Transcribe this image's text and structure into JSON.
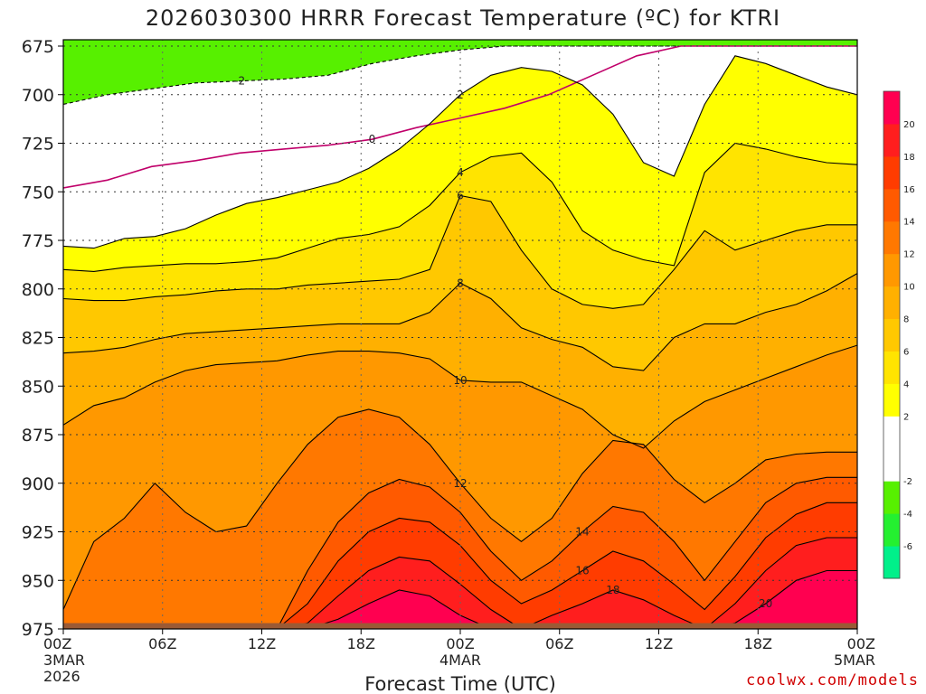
{
  "chart_data": {
    "type": "heatmap",
    "title": "2026030300 HRRR Forecast Temperature (ºC) for KTRI",
    "xlabel": "Forecast Time (UTC)",
    "ylabel": "",
    "x_range_hours": [
      0,
      48
    ],
    "ylim": [
      675,
      975
    ],
    "y_ticks": [
      "675",
      "700",
      "725",
      "750",
      "775",
      "800",
      "825",
      "850",
      "875",
      "900",
      "925",
      "950",
      "975"
    ],
    "x_ticks": [
      {
        "hour": 0,
        "lines": [
          "00Z",
          "3MAR",
          "2026"
        ]
      },
      {
        "hour": 6,
        "lines": [
          "06Z"
        ]
      },
      {
        "hour": 12,
        "lines": [
          "12Z"
        ]
      },
      {
        "hour": 18,
        "lines": [
          "18Z"
        ]
      },
      {
        "hour": 24,
        "lines": [
          "00Z",
          "4MAR"
        ]
      },
      {
        "hour": 30,
        "lines": [
          "06Z"
        ]
      },
      {
        "hour": 36,
        "lines": [
          "12Z"
        ]
      },
      {
        "hour": 42,
        "lines": [
          "18Z"
        ]
      },
      {
        "hour": 48,
        "lines": [
          "00Z",
          "5MAR"
        ]
      }
    ],
    "grid": true,
    "colorbar": {
      "levels": [
        -8,
        -6,
        -4,
        -2,
        0,
        2,
        4,
        6,
        8,
        10,
        12,
        14,
        16,
        18,
        20,
        22
      ],
      "tick_labels": [
        "-6",
        "-4",
        "-2",
        "2",
        "4",
        "6",
        "8",
        "10",
        "12",
        "14",
        "16",
        "18",
        "20"
      ],
      "colors": [
        "#00f08a",
        "#24f030",
        "#57f000",
        "#ffffff",
        "#ffffff",
        "#ffff00",
        "#ffe400",
        "#ffc800",
        "#ffb000",
        "#ff9800",
        "#ff7800",
        "#ff5a00",
        "#ff3c00",
        "#ff1e1e",
        "#ff0050"
      ]
    },
    "contours": [
      {
        "label": "-2",
        "dashed": true,
        "y": [
          705,
          700,
          697,
          694,
          693,
          692,
          690,
          684,
          680,
          677,
          675,
          675,
          675,
          675,
          675,
          675,
          675,
          675,
          675
        ]
      },
      {
        "label": "0",
        "dashed": false,
        "y": [
          748,
          744,
          737,
          734,
          730,
          728,
          726,
          723,
          717,
          712,
          707,
          700,
          690,
          680,
          675,
          675,
          675,
          675,
          675
        ]
      },
      {
        "label": "2",
        "dashed": false,
        "y": [
          778,
          779,
          774,
          773,
          769,
          762,
          756,
          753,
          749,
          745,
          738,
          728,
          715,
          700,
          690,
          686,
          688,
          695,
          710,
          735,
          742,
          705,
          680,
          684,
          690,
          696,
          700
        ]
      },
      {
        "label": "4",
        "dashed": false,
        "y": [
          790,
          791,
          789,
          788,
          787,
          787,
          786,
          784,
          779,
          774,
          772,
          768,
          757,
          740,
          732,
          730,
          745,
          770,
          780,
          785,
          788,
          740,
          725,
          728,
          732,
          735,
          736
        ]
      },
      {
        "label": "6",
        "dashed": false,
        "y": [
          805,
          806,
          806,
          804,
          803,
          801,
          800,
          800,
          798,
          797,
          796,
          795,
          790,
          752,
          755,
          780,
          800,
          808,
          810,
          808,
          790,
          770,
          780,
          775,
          770,
          767,
          767
        ]
      },
      {
        "label": "8",
        "dashed": false,
        "y": [
          833,
          832,
          830,
          826,
          823,
          822,
          821,
          820,
          819,
          818,
          818,
          818,
          812,
          797,
          805,
          820,
          826,
          830,
          840,
          842,
          825,
          818,
          818,
          812,
          808,
          801,
          792
        ]
      },
      {
        "label": "10",
        "dashed": false,
        "y": [
          870,
          860,
          856,
          848,
          842,
          839,
          838,
          837,
          834,
          832,
          832,
          833,
          836,
          847,
          848,
          848,
          855,
          862,
          875,
          882,
          868,
          858,
          852,
          846,
          840,
          834,
          829
        ]
      },
      {
        "label": "12",
        "dashed": false,
        "y": [
          965,
          930,
          918,
          900,
          915,
          925,
          922,
          900,
          880,
          866,
          862,
          866,
          880,
          900,
          918,
          930,
          918,
          895,
          878,
          880,
          898,
          910,
          900,
          888,
          885,
          884,
          884
        ]
      },
      {
        "label": "14",
        "dashed": false,
        "y": [
          975,
          975,
          975,
          975,
          975,
          975,
          975,
          975,
          945,
          920,
          905,
          898,
          902,
          915,
          935,
          950,
          940,
          925,
          912,
          915,
          930,
          950,
          930,
          910,
          900,
          897,
          897
        ]
      },
      {
        "label": "16",
        "dashed": false,
        "y": [
          975,
          975,
          975,
          975,
          975,
          975,
          975,
          975,
          962,
          940,
          925,
          918,
          920,
          932,
          950,
          962,
          955,
          945,
          935,
          940,
          952,
          965,
          948,
          928,
          916,
          910,
          910
        ]
      },
      {
        "label": "18",
        "dashed": false,
        "y": [
          975,
          975,
          975,
          975,
          975,
          975,
          975,
          975,
          972,
          958,
          945,
          938,
          940,
          952,
          965,
          975,
          968,
          962,
          955,
          960,
          968,
          975,
          962,
          945,
          932,
          928,
          928
        ]
      },
      {
        "label": "20",
        "dashed": false,
        "y": [
          975,
          975,
          975,
          975,
          975,
          975,
          975,
          975,
          975,
          970,
          962,
          955,
          958,
          968,
          975,
          975,
          975,
          975,
          975,
          975,
          975,
          975,
          972,
          962,
          950,
          945,
          945
        ]
      }
    ],
    "ground_top_hPa": 972
  },
  "credit": "coolwx.com/models"
}
